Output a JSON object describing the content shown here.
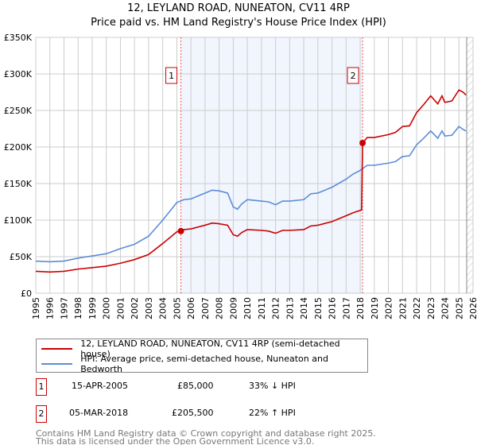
{
  "chart_data": {
    "type": "line",
    "title": "12, LEYLAND ROAD, NUNEATON, CV11 4RP",
    "subtitle": "Price paid vs. HM Land Registry's House Price Index (HPI)",
    "xlim": [
      1995,
      2026
    ],
    "ylim": [
      0,
      350000
    ],
    "x_ticks": [
      "1995",
      "1996",
      "1997",
      "1998",
      "1999",
      "2000",
      "2001",
      "2002",
      "2003",
      "2004",
      "2005",
      "2006",
      "2007",
      "2008",
      "2009",
      "2010",
      "2011",
      "2012",
      "2013",
      "2014",
      "2015",
      "2016",
      "2017",
      "2018",
      "2019",
      "2020",
      "2021",
      "2022",
      "2023",
      "2024",
      "2025",
      "2026"
    ],
    "y_ticks": [
      {
        "v": 0,
        "l": "£0"
      },
      {
        "v": 50000,
        "l": "£50K"
      },
      {
        "v": 100000,
        "l": "£100K"
      },
      {
        "v": 150000,
        "l": "£150K"
      },
      {
        "v": 200000,
        "l": "£200K"
      },
      {
        "v": 250000,
        "l": "£250K"
      },
      {
        "v": 300000,
        "l": "£300K"
      },
      {
        "v": 350000,
        "l": "£350K"
      }
    ],
    "grid": true,
    "shaded_range": [
      2005.29,
      2018.17
    ],
    "future_hatch_from": 2025.55,
    "series": [
      {
        "name": "12, LEYLAND ROAD, NUNEATON, CV11 4RP (semi-detached house)",
        "color": "#cc0000",
        "x": [
          1995,
          1996,
          1997,
          1998,
          1999,
          2000,
          2001,
          2002,
          2003,
          2004,
          2005,
          2005.29,
          2005.5,
          2006,
          2007,
          2007.5,
          2008,
          2008.6,
          2009,
          2009.3,
          2009.6,
          2010,
          2011,
          2011.5,
          2012,
          2012.5,
          2013,
          2014,
          2014.5,
          2015,
          2016,
          2017,
          2017.5,
          2018.1,
          2018.17,
          2018.5,
          2019,
          2020,
          2020.5,
          2021,
          2021.5,
          2022,
          2022.5,
          2023,
          2023.5,
          2023.8,
          2024,
          2024.5,
          2025,
          2025.3,
          2025.5
        ],
        "y": [
          30000,
          29000,
          30000,
          33000,
          35000,
          37000,
          41000,
          46000,
          53000,
          68000,
          84000,
          85000,
          87000,
          88000,
          93000,
          96000,
          95000,
          93000,
          80000,
          78000,
          83000,
          87000,
          86000,
          85000,
          82000,
          86000,
          86000,
          87000,
          92000,
          93000,
          98000,
          106000,
          110000,
          114000,
          205500,
          213000,
          213000,
          217000,
          220000,
          228000,
          229000,
          247000,
          258000,
          270000,
          259000,
          270000,
          261000,
          263000,
          278000,
          275000,
          271000
        ]
      },
      {
        "name": "HPI: Average price, semi-detached house, Nuneaton and Bedworth",
        "color": "#5b8dd6",
        "x": [
          1995,
          1996,
          1997,
          1998,
          1999,
          2000,
          2001,
          2002,
          2003,
          2004,
          2005,
          2005.5,
          2006,
          2007,
          2007.5,
          2008,
          2008.6,
          2009,
          2009.3,
          2009.6,
          2010,
          2011,
          2011.5,
          2012,
          2012.5,
          2013,
          2014,
          2014.5,
          2015,
          2016,
          2017,
          2017.5,
          2018,
          2018.5,
          2019,
          2020,
          2020.5,
          2021,
          2021.5,
          2022,
          2022.5,
          2023,
          2023.5,
          2023.8,
          2024,
          2024.5,
          2025,
          2025.3,
          2025.5
        ],
        "y": [
          44000,
          43000,
          44000,
          48000,
          51000,
          54000,
          61000,
          67000,
          78000,
          100000,
          124000,
          128000,
          129000,
          137000,
          141000,
          140000,
          137000,
          118000,
          115000,
          122000,
          128000,
          126000,
          125000,
          121000,
          126000,
          126000,
          128000,
          136000,
          137000,
          145000,
          156000,
          163000,
          168000,
          175000,
          175000,
          178000,
          180000,
          187000,
          188000,
          203000,
          212000,
          222000,
          212000,
          222000,
          215000,
          216000,
          228000,
          224000,
          222000
        ]
      }
    ],
    "sales": [
      {
        "label": "1",
        "x": 2005.29,
        "price": 85000,
        "date": "15-APR-2005",
        "price_text": "£85,000",
        "hpi_text": "33% ↓ HPI"
      },
      {
        "label": "2",
        "x": 2018.17,
        "price": 205500,
        "date": "05-MAR-2018",
        "price_text": "£205,500",
        "hpi_text": "22% ↑ HPI"
      }
    ]
  },
  "footer": {
    "line1": "Contains HM Land Registry data © Crown copyright and database right 2025.",
    "line2": "This data is licensed under the Open Government Licence v3.0."
  }
}
